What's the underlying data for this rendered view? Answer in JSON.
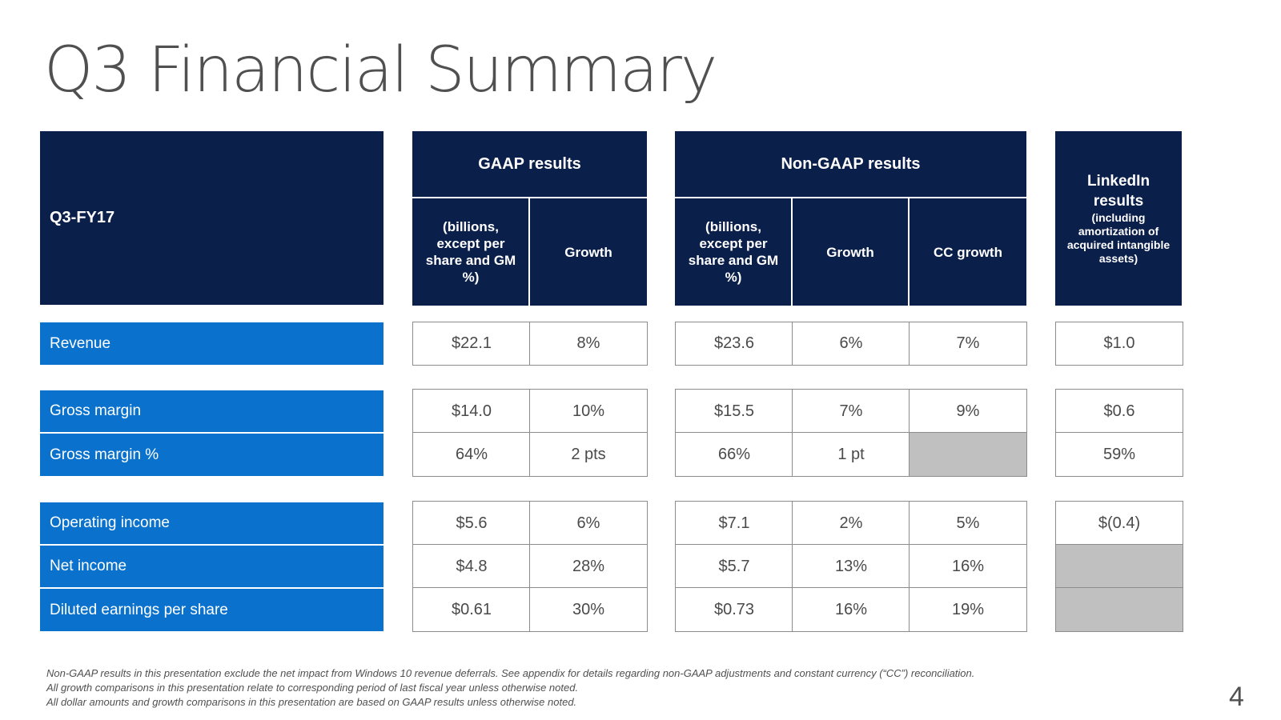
{
  "title": "Q3 Financial Summary",
  "header": {
    "period": "Q3-FY17",
    "gaap": {
      "title": "GAAP results",
      "col_amount": "(billions, except per share and GM %)",
      "col_growth": "Growth"
    },
    "non_gaap": {
      "title": "Non-GAAP results",
      "col_amount": "(billions, except per share and GM %)",
      "col_growth": "Growth",
      "col_cc_growth": "CC growth"
    },
    "linkedin": {
      "title": "LinkedIn results",
      "subtitle": "(including amortization of acquired intangible assets)"
    }
  },
  "rows": [
    {
      "label": "Revenue",
      "gaap_amount": "$22.1",
      "gaap_growth": "8%",
      "nongaap_amount": "$23.6",
      "nongaap_growth": "6%",
      "nongaap_cc": "7%",
      "linkedin": "$1.0"
    },
    {
      "label": "Gross margin",
      "gaap_amount": "$14.0",
      "gaap_growth": "10%",
      "nongaap_amount": "$15.5",
      "nongaap_growth": "7%",
      "nongaap_cc": "9%",
      "linkedin": "$0.6"
    },
    {
      "label": "Gross margin %",
      "gaap_amount": "64%",
      "gaap_growth": "2 pts",
      "nongaap_amount": "66%",
      "nongaap_growth": "1 pt",
      "nongaap_cc": "",
      "linkedin": "59%"
    },
    {
      "label": "Operating income",
      "gaap_amount": "$5.6",
      "gaap_growth": "6%",
      "nongaap_amount": "$7.1",
      "nongaap_growth": "2%",
      "nongaap_cc": "5%",
      "linkedin": "$(0.4)"
    },
    {
      "label": "Net income",
      "gaap_amount": "$4.8",
      "gaap_growth": "28%",
      "nongaap_amount": "$5.7",
      "nongaap_growth": "13%",
      "nongaap_cc": "16%",
      "linkedin": ""
    },
    {
      "label": "Diluted earnings per share",
      "gaap_amount": "$0.61",
      "gaap_growth": "30%",
      "nongaap_amount": "$0.73",
      "nongaap_growth": "16%",
      "nongaap_cc": "19%",
      "linkedin": ""
    }
  ],
  "footnotes": [
    "Non-GAAP results in this presentation exclude the net impact from Windows 10 revenue deferrals. See appendix for details regarding non-GAAP adjustments and constant currency (“CC”) reconciliation.",
    "All growth comparisons in this presentation relate to corresponding period of last fiscal year unless otherwise noted.",
    "All dollar amounts and growth comparisons in this presentation are based on GAAP results unless otherwise noted."
  ],
  "page_number": "4",
  "colors": {
    "header_navy": "#0b1f4b",
    "row_label_blue": "#0a72cc",
    "empty_cell_grey": "#c0c0c0"
  }
}
